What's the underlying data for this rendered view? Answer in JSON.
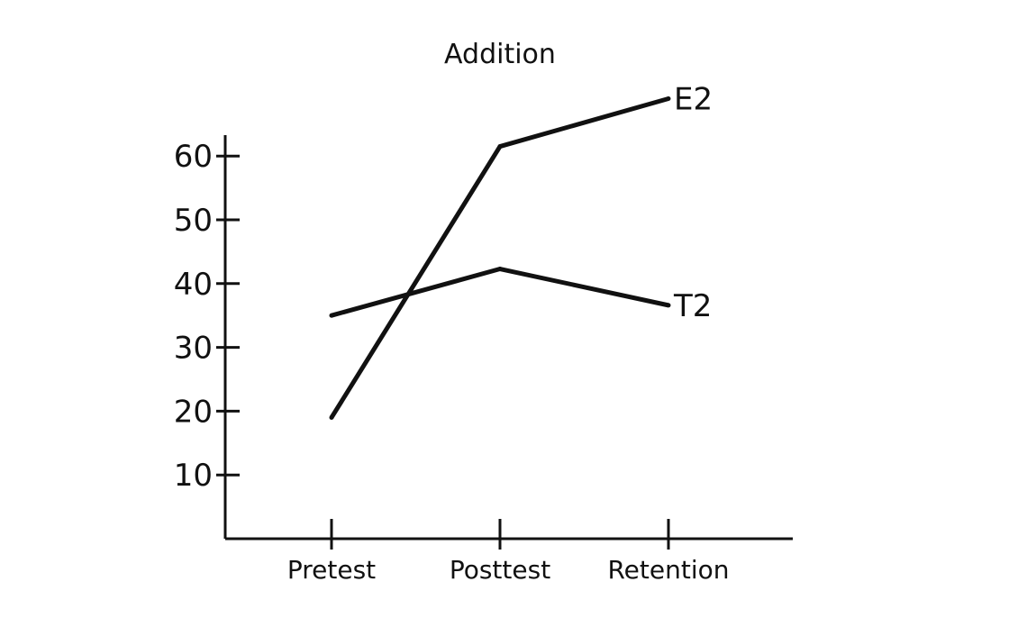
{
  "chart_data": {
    "type": "line",
    "title": "Addition",
    "xlabel": "",
    "ylabel": "",
    "categories": [
      "Pretest",
      "Posttest",
      "Retention"
    ],
    "yticks": [
      10,
      20,
      30,
      40,
      50,
      60
    ],
    "ylim": [
      0,
      63
    ],
    "grid": false,
    "series": [
      {
        "name": "E2",
        "values": [
          19,
          61.5,
          69
        ]
      },
      {
        "name": "T2",
        "values": [
          35,
          42.3,
          36.6
        ]
      }
    ],
    "line_color": "#111111"
  }
}
